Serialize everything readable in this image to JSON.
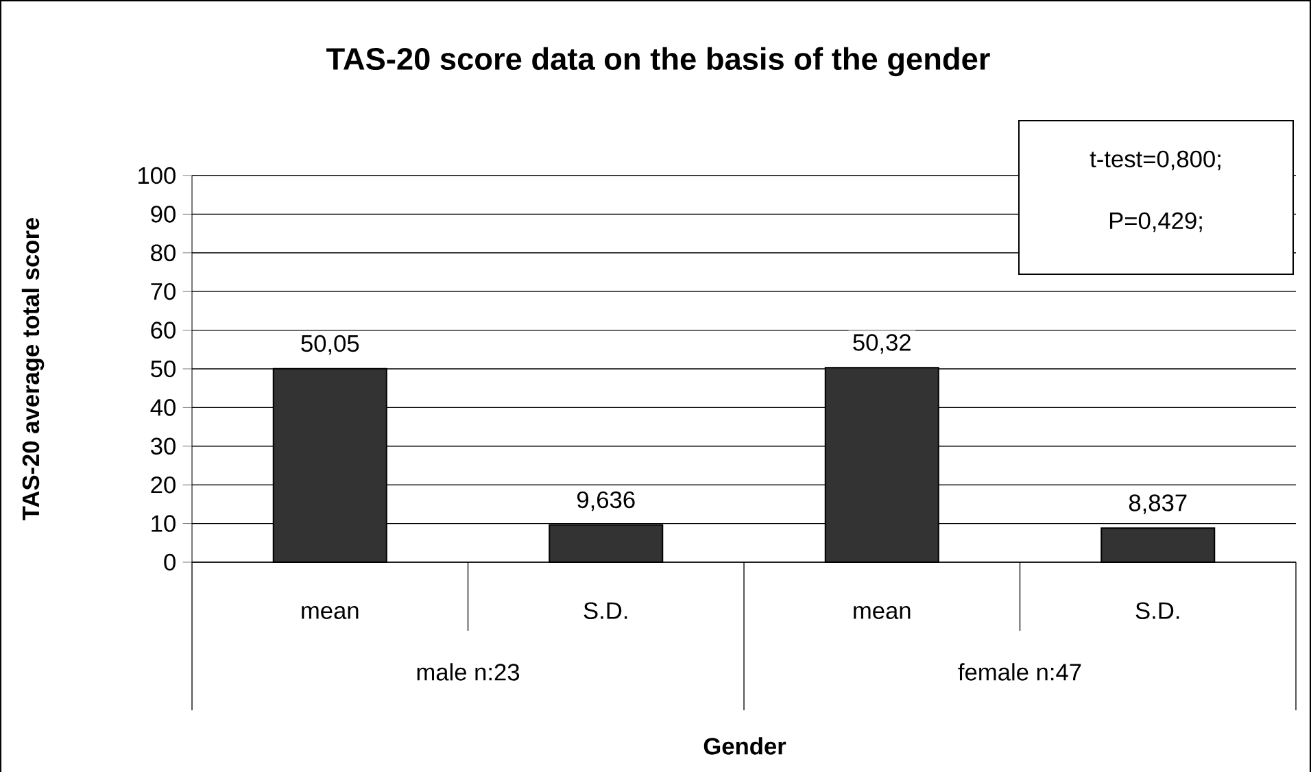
{
  "chart_data": {
    "type": "bar",
    "title": "TAS-20 score data on the basis of the gender",
    "xlabel": "Gender",
    "ylabel": "TAS-20 average total score",
    "categories": [
      "mean",
      "S.D.",
      "mean",
      "S.D."
    ],
    "values": [
      50.05,
      9.636,
      50.32,
      8.837
    ],
    "value_labels": [
      "50,05",
      "9,636",
      "50,32",
      "8,837"
    ],
    "color": "#333333",
    "ylim": [
      0,
      100
    ],
    "yticks": [
      0,
      10,
      20,
      30,
      40,
      50,
      60,
      70,
      80,
      90,
      100
    ],
    "grid": "y",
    "annotations": [
      "male n:23",
      "female n:47",
      "t-test=0,800;",
      "P=0,429;"
    ]
  }
}
